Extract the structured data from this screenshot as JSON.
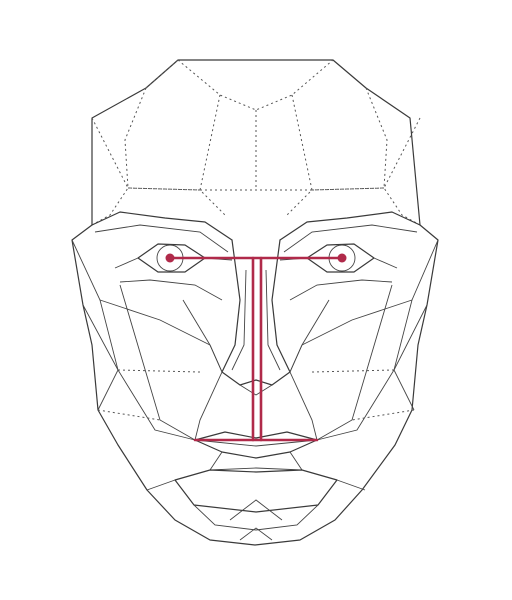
{
  "figure": {
    "subject": "face-mask-diagram"
  },
  "colors": {
    "line": "#3a3a3a",
    "marker": "#b02a4a",
    "background": "#ffffff"
  }
}
